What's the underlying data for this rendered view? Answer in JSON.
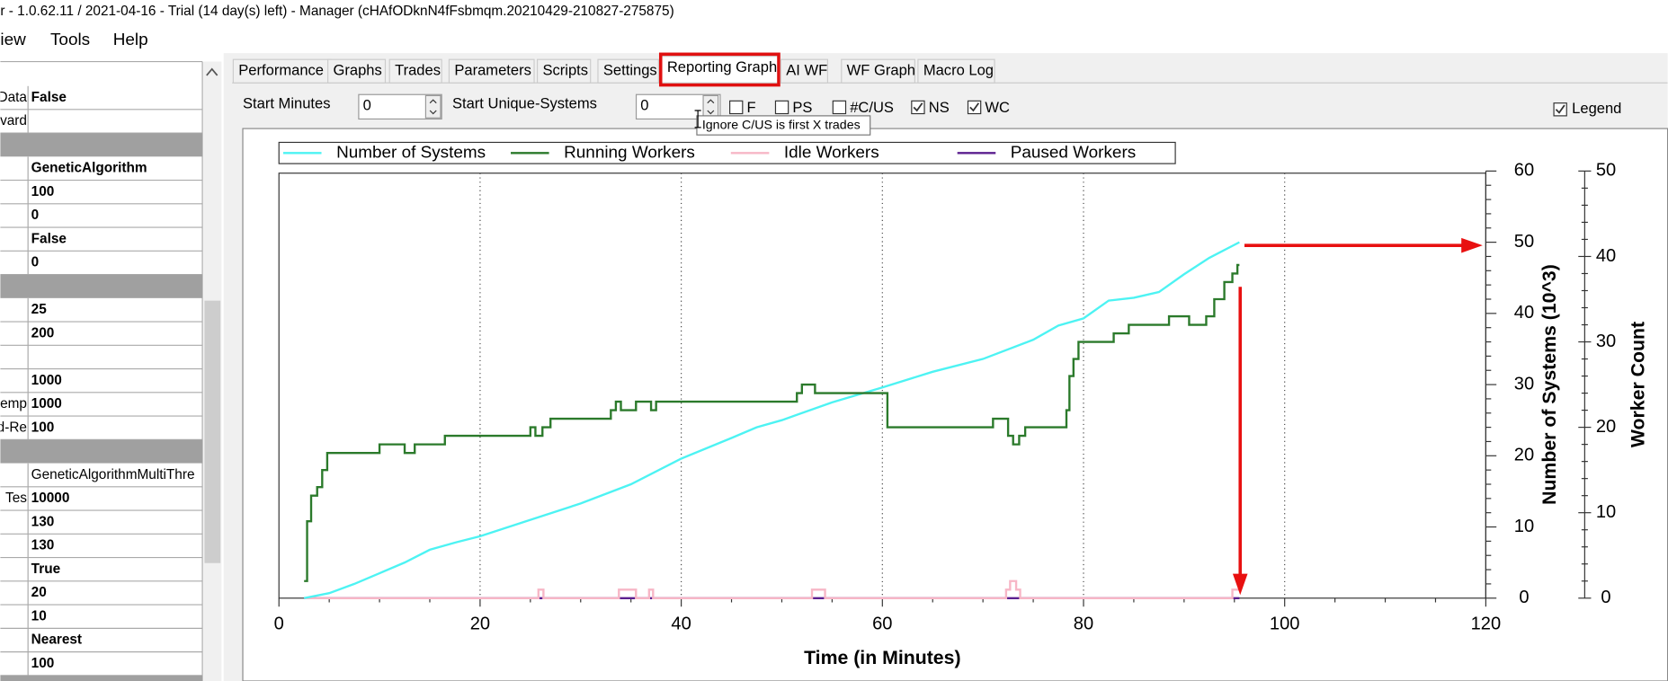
{
  "window_title": "r - 1.0.62.11 / 2021-04-16 - Trial (14 day(s) left) - Manager (cHAfODknN4fFsbmqm.20210429-210827-275875)",
  "menu": [
    "iew",
    "Tools",
    "Help"
  ],
  "property_grid": {
    "groups": [
      [
        {
          "label": "Data",
          "value": "False"
        },
        {
          "label": "vard"
        }
      ],
      [
        {
          "value": "GeneticAlgorithm"
        },
        {
          "value": "100"
        },
        {
          "value": "0"
        },
        {
          "value": "False"
        },
        {
          "value": "0"
        }
      ],
      [
        {
          "value": "25"
        },
        {
          "value": "200"
        },
        {},
        {
          "value": "1000"
        },
        {
          "label": "emp",
          "value": "1000"
        },
        {
          "label": "d-Re",
          "value": "100"
        }
      ],
      [
        {
          "value": "GeneticAlgorithmMultiThre"
        },
        {
          "label": "Tes",
          "value": "10000"
        },
        {
          "value": "130"
        },
        {
          "value": "130"
        },
        {
          "value": "True"
        },
        {
          "value": "20"
        },
        {
          "value": "10"
        },
        {
          "value": "Nearest"
        },
        {
          "value": "100"
        }
      ]
    ]
  },
  "tabs": {
    "items": [
      "Performance",
      "Graphs",
      "Trades",
      "Parameters",
      "Scripts",
      "Settings",
      "Reporting Graph",
      "AI WF",
      "WF Graph",
      "Macro Log"
    ],
    "selected": 6
  },
  "controls": {
    "start_minutes": {
      "label": "Start Minutes",
      "value": "0"
    },
    "start_unique_systems": {
      "label": "Start Unique-Systems",
      "value": "0"
    },
    "checkboxes": [
      {
        "label": "F",
        "checked": false
      },
      {
        "label": "PS",
        "checked": false
      },
      {
        "label": "#C/US",
        "checked": false
      },
      {
        "label": "NS",
        "checked": true
      },
      {
        "label": "WC",
        "checked": true
      }
    ],
    "legend": {
      "label": "Legend",
      "checked": true
    }
  },
  "tooltip": "Ignore C/US is first X trades",
  "chart_data": {
    "type": "line",
    "xlabel": "Time (in Minutes)",
    "ylabel": "Number of Systems (10^3)",
    "y2label": "Worker Count",
    "xlim": [
      0,
      120
    ],
    "ylim": [
      0,
      60
    ],
    "y2lim": [
      0,
      50
    ],
    "xticks": [
      0,
      20,
      40,
      60,
      80,
      100,
      120
    ],
    "xminorticks": [
      5,
      10,
      15,
      25,
      30,
      35,
      45,
      50,
      55,
      65,
      70,
      75,
      85,
      90,
      95,
      105,
      110,
      115
    ],
    "yticks": [
      0,
      10,
      20,
      30,
      40,
      50,
      60
    ],
    "yminorticks": [
      2,
      4,
      6,
      8,
      12,
      14,
      16,
      18,
      22,
      24,
      26,
      28,
      32,
      34,
      36,
      38,
      42,
      44,
      46,
      48,
      52,
      54,
      56,
      58
    ],
    "y2ticks": [
      0,
      10,
      20,
      30,
      40,
      50
    ],
    "y2minorticks": [
      2,
      4,
      6,
      8,
      12,
      14,
      16,
      18,
      22,
      24,
      26,
      28,
      32,
      34,
      36,
      38,
      42,
      44,
      46,
      48
    ],
    "grid": "x",
    "legend": "top",
    "series": [
      {
        "name": "Number of Systems",
        "color": "#4df3f3",
        "axis": "y",
        "x": [
          2.5,
          5,
          7.5,
          10,
          12.5,
          15,
          17.5,
          20,
          25,
          30,
          35,
          40,
          45,
          47.5,
          50,
          55,
          60,
          65,
          70,
          75,
          77.5,
          80,
          82.5,
          85,
          87.5,
          90,
          92.5,
          95.5
        ],
        "values": [
          0,
          0.7,
          2,
          3.5,
          5,
          6.8,
          7.8,
          8.7,
          11,
          13.3,
          16,
          19.6,
          22.5,
          24,
          25,
          27.5,
          29.6,
          31.8,
          33.6,
          36.3,
          38.3,
          39.3,
          41.8,
          42.2,
          43,
          45.5,
          47.8,
          50
        ]
      },
      {
        "name": "Running Workers",
        "color": "#2b7a2b",
        "axis": "y2",
        "x": [
          2.5,
          2.8,
          2.8,
          3.2,
          3.2,
          3.8,
          3.8,
          4.3,
          4.3,
          4.8,
          4.8,
          10,
          10,
          12.5,
          12.5,
          13.5,
          13.5,
          16.5,
          16.5,
          25,
          25,
          25.5,
          25.5,
          26.2,
          26.2,
          27,
          27,
          33,
          33,
          33.5,
          33.5,
          34,
          34,
          35.5,
          35.5,
          37,
          37,
          37.5,
          37.5,
          51.5,
          51.5,
          52,
          52,
          53.3,
          53.3,
          60.5,
          60.5,
          71,
          71,
          72.5,
          72.5,
          73,
          73,
          73.6,
          73.6,
          74.2,
          74.2,
          78.3,
          78.3,
          78.6,
          78.6,
          79,
          79,
          79.5,
          79.5,
          83,
          83,
          84.5,
          84.5,
          88.5,
          88.5,
          90.5,
          90.5,
          92.2,
          92.2,
          93,
          93,
          94,
          94,
          94.8,
          94.8,
          95.3,
          95.3,
          95.5
        ],
        "values": [
          2,
          2,
          9,
          9,
          12,
          12,
          13,
          13,
          15,
          15,
          17,
          17,
          18,
          18,
          17,
          17,
          18,
          18,
          19,
          19,
          20,
          20,
          19,
          19,
          20,
          20,
          21,
          21,
          22,
          22,
          23,
          23,
          22,
          22,
          23,
          23,
          22,
          22,
          23,
          23,
          24,
          24,
          25,
          25,
          24,
          24,
          20,
          20,
          21,
          21,
          19,
          19,
          18,
          18,
          19,
          19,
          20,
          20,
          22,
          22,
          26,
          26,
          28,
          28,
          30,
          30,
          31,
          31,
          32,
          32,
          33,
          33,
          32,
          32,
          33,
          33,
          35,
          35,
          37,
          37,
          38,
          38,
          39,
          39
        ]
      },
      {
        "name": "Idle Workers",
        "color": "#f7b6c6",
        "axis": "y2",
        "x": [
          2.5,
          25.8,
          25.8,
          26.3,
          26.3,
          33.8,
          33.8,
          35.5,
          35.5,
          36.8,
          36.8,
          37.2,
          37.2,
          53,
          53,
          54.3,
          54.3,
          72.3,
          72.3,
          72.7,
          72.7,
          73.3,
          73.3,
          73.7,
          73.7,
          94.8,
          94.8,
          95.5
        ],
        "values": [
          0,
          0,
          1,
          1,
          0,
          0,
          1,
          1,
          0,
          0,
          1,
          1,
          0,
          0,
          1,
          1,
          0,
          0,
          1,
          1,
          2,
          2,
          1,
          1,
          0,
          0,
          1,
          1
        ]
      },
      {
        "name": "Paused Workers",
        "color": "#5b1f8f",
        "axis": "y2",
        "x": [
          2.5,
          95.5
        ],
        "values": [
          0,
          0
        ]
      }
    ]
  }
}
